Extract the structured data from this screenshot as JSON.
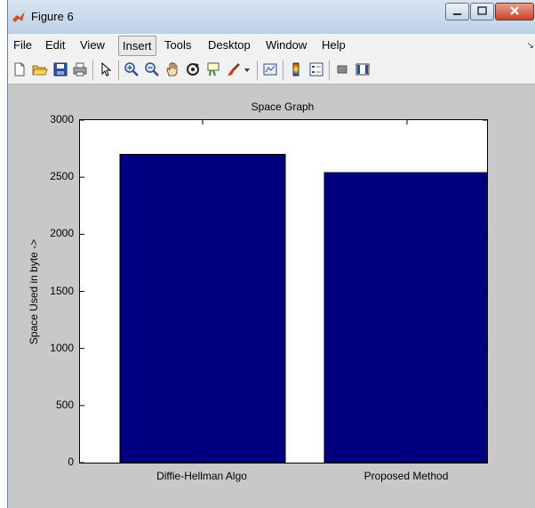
{
  "window": {
    "title": "Figure 6"
  },
  "menu": {
    "items": [
      "File",
      "Edit",
      "View",
      "Insert",
      "Tools",
      "Desktop",
      "Window",
      "Help"
    ],
    "active": "Insert"
  },
  "toolbar": {
    "icons": [
      "new-figure-icon",
      "open-icon",
      "save-icon",
      "print-icon",
      "pointer-icon",
      "zoom-in-icon",
      "zoom-out-icon",
      "pan-icon",
      "rotate-icon",
      "data-cursor-icon",
      "brush-icon",
      "link-icon",
      "colorbar-icon",
      "legend-icon",
      "hide-plot-tools-icon",
      "show-plot-tools-icon"
    ]
  },
  "colors": {
    "bar": "#000080",
    "figure_bg": "#c8c8c8",
    "axes_bg": "#ffffff"
  },
  "chart_data": {
    "type": "bar",
    "title": "Space Graph",
    "xlabel": "",
    "ylabel": "Space Used in byte ->",
    "categories": [
      "Diffie-Hellman Algo",
      "Proposed Method"
    ],
    "values": [
      2700,
      2540
    ],
    "ylim": [
      0,
      3000
    ],
    "yticks": [
      "0",
      "500",
      "1000",
      "1500",
      "2000",
      "2500",
      "3000"
    ],
    "grid": false
  }
}
